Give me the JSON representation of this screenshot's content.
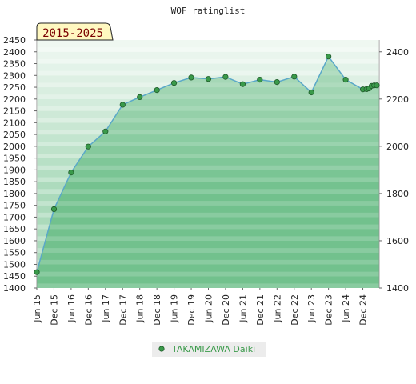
{
  "chart_data": {
    "type": "area",
    "title": "WOF ratinglist",
    "badge": "2015-2025",
    "legend": "TAKAMIZAWA Daiki",
    "legend_position": "bottom",
    "grid": true,
    "x_ticks": [
      "Jun 15",
      "Dec 15",
      "Jun 16",
      "Dec 16",
      "Jun 17",
      "Dec 17",
      "Jun 18",
      "Dec 18",
      "Jun 19",
      "Dec 19",
      "Jun 20",
      "Dec 20",
      "Jun 21",
      "Dec 21",
      "Jun 22",
      "Dec 22",
      "Jun 23",
      "Dec 23",
      "Jun 24",
      "Dec 24"
    ],
    "y_left_ticks": [
      "1400",
      "1450",
      "1500",
      "1550",
      "1600",
      "1650",
      "1700",
      "1750",
      "1800",
      "1850",
      "1900",
      "1950",
      "2000",
      "2050",
      "2100",
      "2150",
      "2200",
      "2250",
      "2300",
      "2350",
      "2400",
      "2450"
    ],
    "y_right_ticks": [
      "1400",
      "1600",
      "1800",
      "2000",
      "2200",
      "2400"
    ],
    "ylim": [
      1400,
      2450
    ],
    "series": [
      {
        "name": "TAKAMIZAWA Daiki",
        "x": [
          "Jun 15",
          "Dec 15",
          "Jun 16",
          "Dec 16",
          "Jun 17",
          "Dec 17",
          "Jun 18",
          "Dec 18",
          "Jun 19",
          "Dec 19",
          "Jun 20",
          "Dec 20",
          "Jun 21",
          "Dec 21",
          "Jun 22",
          "Dec 22",
          "Jun 23",
          "Dec 23",
          "Jun 24",
          "Dec 24",
          "Jan 25",
          "Feb 25",
          "Mar 25",
          "Apr 25",
          "May 25"
        ],
        "values": [
          1467,
          1734,
          1889,
          1999,
          2063,
          2176,
          2208,
          2238,
          2268,
          2291,
          2285,
          2294,
          2263,
          2282,
          2272,
          2295,
          2228,
          2380,
          2282,
          2241,
          2242,
          2245,
          2256,
          2258,
          2258
        ]
      }
    ]
  },
  "colors": {
    "line": "#5aa8c8",
    "marker": "#3a9a4a",
    "band_dark": "#7ec697",
    "band_light": "#e6f4ea"
  }
}
